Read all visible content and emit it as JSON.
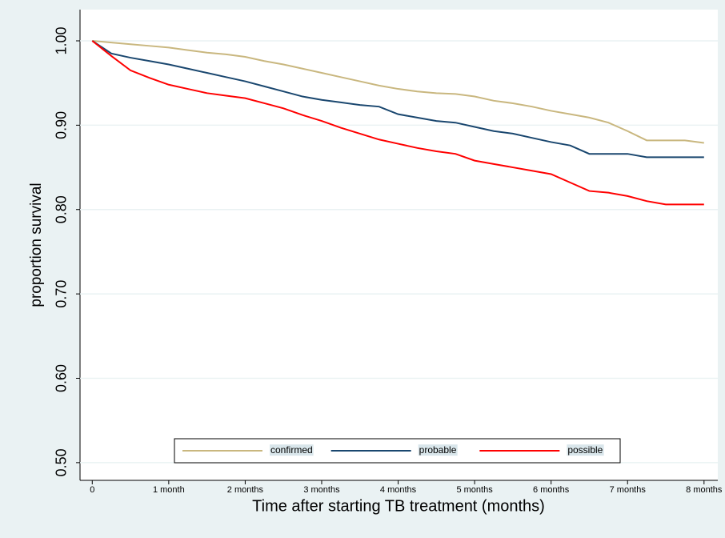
{
  "chart_data": {
    "type": "line",
    "y_label": "proportion survival",
    "x_label": "Time after starting TB treatment (months)",
    "x": [
      0,
      0.25,
      0.5,
      0.75,
      1,
      1.25,
      1.5,
      1.75,
      2,
      2.25,
      2.5,
      2.75,
      3,
      3.25,
      3.5,
      3.75,
      4,
      4.25,
      4.5,
      4.75,
      5,
      5.25,
      5.5,
      5.75,
      6,
      6.25,
      6.5,
      6.75,
      7,
      7.25,
      7.5,
      7.75,
      8
    ],
    "series": [
      {
        "name": "confirmed",
        "color": "#c9b77f",
        "values": [
          1.0,
          0.998,
          0.996,
          0.994,
          0.992,
          0.989,
          0.986,
          0.984,
          0.981,
          0.976,
          0.972,
          0.967,
          0.962,
          0.957,
          0.952,
          0.947,
          0.943,
          0.94,
          0.938,
          0.937,
          0.934,
          0.929,
          0.926,
          0.922,
          0.917,
          0.913,
          0.909,
          0.903,
          0.893,
          0.882,
          0.882,
          0.882,
          0.879
        ]
      },
      {
        "name": "probable",
        "color": "#1a476f",
        "values": [
          1.0,
          0.985,
          0.98,
          0.976,
          0.972,
          0.967,
          0.962,
          0.957,
          0.952,
          0.946,
          0.94,
          0.934,
          0.93,
          0.927,
          0.924,
          0.922,
          0.913,
          0.909,
          0.905,
          0.903,
          0.898,
          0.893,
          0.89,
          0.885,
          0.88,
          0.876,
          0.866,
          0.866,
          0.866,
          0.862,
          0.862,
          0.862,
          0.862
        ]
      },
      {
        "name": "possible",
        "color": "#ff0000",
        "values": [
          1.0,
          0.982,
          0.965,
          0.956,
          0.948,
          0.943,
          0.938,
          0.935,
          0.932,
          0.926,
          0.92,
          0.912,
          0.905,
          0.897,
          0.89,
          0.883,
          0.878,
          0.873,
          0.869,
          0.866,
          0.858,
          0.854,
          0.85,
          0.846,
          0.842,
          0.832,
          0.822,
          0.82,
          0.816,
          0.81,
          0.806,
          0.806,
          0.806
        ]
      }
    ],
    "xlim": [
      -0.16,
      8.18
    ],
    "ylim": [
      0.479,
      1.037
    ],
    "xticks": [
      0,
      {
        "value": 1,
        "label": "1 month"
      },
      {
        "value": 2,
        "label": "2 months"
      },
      {
        "value": 3,
        "label": "3 months"
      },
      {
        "value": 4,
        "label": "4 months"
      },
      {
        "value": 5,
        "label": "5 months"
      },
      {
        "value": 6,
        "label": "6 months"
      },
      {
        "value": 7,
        "label": "7 months"
      },
      {
        "value": 8,
        "label": "8 months"
      }
    ],
    "yticks": [
      {
        "value": 0.5,
        "label": "0.50"
      },
      {
        "value": 0.6,
        "label": "0.60"
      },
      {
        "value": 0.7,
        "label": "0.70"
      },
      {
        "value": 0.8,
        "label": "0.80"
      },
      {
        "value": 0.9,
        "label": "0.90"
      },
      {
        "value": 1.0,
        "label": "1.00"
      }
    ],
    "grid": true,
    "legend_position": "bottom"
  }
}
